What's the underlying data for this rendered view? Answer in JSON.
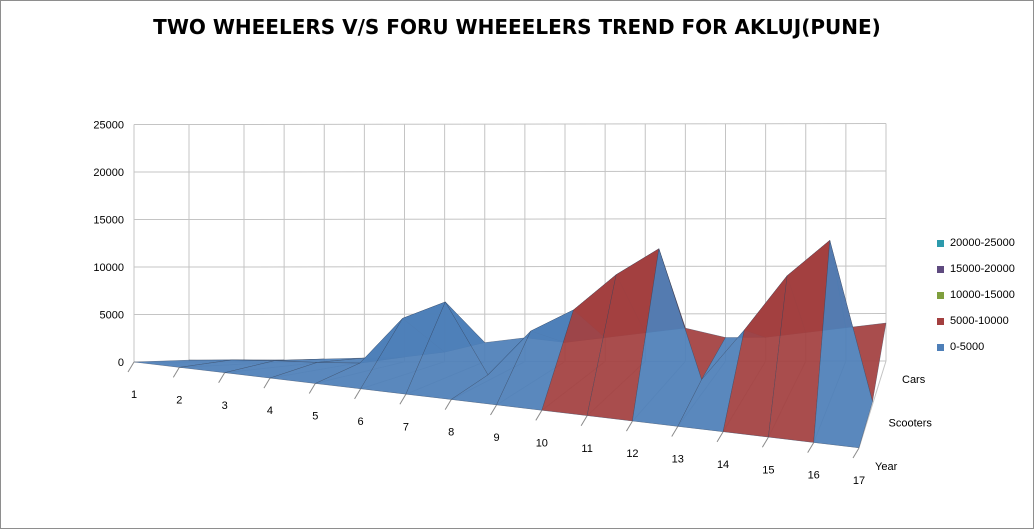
{
  "chart_data": {
    "type": "surface",
    "title": "TWO WHEELERS V/S FORU WHEEELERS TREND FOR AKLUJ(PUNE)",
    "categories": [
      "1",
      "2",
      "3",
      "4",
      "5",
      "6",
      "7",
      "8",
      "9",
      "10",
      "11",
      "12",
      "13",
      "14",
      "15",
      "16",
      "17"
    ],
    "series": [
      {
        "name": "Year",
        "values": [
          1,
          2,
          3,
          4,
          5,
          6,
          7,
          8,
          9,
          10,
          11,
          12,
          13,
          14,
          15,
          16,
          17
        ]
      },
      {
        "name": "Scooters",
        "values": [
          200,
          500,
          700,
          800,
          1000,
          6000,
          8000,
          600,
          5500,
          8000,
          12000,
          15000,
          1500,
          7000,
          13000,
          17000,
          300
        ]
      },
      {
        "name": "Cars",
        "values": [
          100,
          200,
          300,
          400,
          500,
          1000,
          2000,
          2500,
          2000,
          2500,
          3000,
          3500,
          2500,
          2500,
          3000,
          3500,
          4000
        ]
      }
    ],
    "zlim": [
      0,
      25000
    ],
    "z_ticks": [
      0,
      5000,
      10000,
      15000,
      20000,
      25000
    ],
    "bands": [
      {
        "label": "20000-25000",
        "color": "#2c9aac"
      },
      {
        "label": "15000-20000",
        "color": "#5e4a7f"
      },
      {
        "label": "10000-15000",
        "color": "#7f9f3d"
      },
      {
        "label": "5000-10000",
        "color": "#a33f3f"
      },
      {
        "label": "0-5000",
        "color": "#4e7fb8"
      }
    ],
    "grid": true,
    "legend_position": "right"
  }
}
